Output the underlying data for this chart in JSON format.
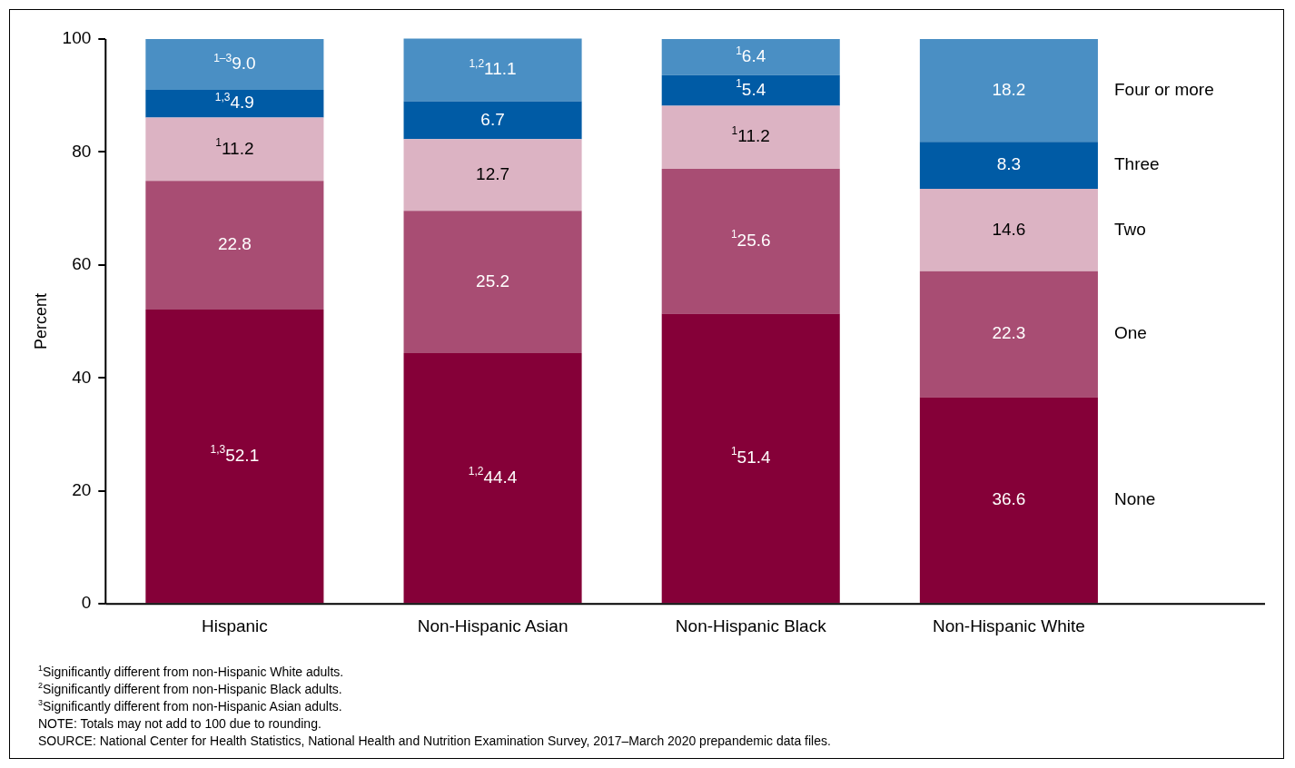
{
  "chart_data": {
    "type": "bar",
    "stacked": true,
    "ylabel": "Percent",
    "categories": [
      "Hispanic",
      "Non-Hispanic Asian",
      "Non-Hispanic Black",
      "Non-Hispanic White"
    ],
    "ylim": [
      0,
      100
    ],
    "yticks": [
      0,
      20,
      40,
      60,
      80,
      100
    ],
    "grid": false,
    "series": [
      {
        "name": "None",
        "color": "#850038",
        "values": [
          52.1,
          44.4,
          51.4,
          36.6
        ],
        "value_labels": [
          "$^{1,3}$52.1",
          "$^{1,2}$44.4",
          "$^{1}$51.4",
          "36.6"
        ]
      },
      {
        "name": "One",
        "color": "#a84d73",
        "values": [
          22.8,
          25.2,
          25.6,
          22.3
        ],
        "value_labels": [
          "22.8",
          "25.2",
          "$^{1}$25.6",
          "22.3"
        ]
      },
      {
        "name": "Two",
        "color": "#dcb3c3",
        "values": [
          11.2,
          12.7,
          11.2,
          14.6
        ],
        "value_labels": [
          "$^{1}$11.2",
          "12.7",
          "$^{1}$11.2",
          "14.6"
        ]
      },
      {
        "name": "Three",
        "color": "#005ba5",
        "values": [
          4.9,
          6.7,
          5.4,
          8.3
        ],
        "value_labels": [
          "$^{1,3}$4.9",
          "6.7",
          "$^{1}$5.4",
          "8.3"
        ]
      },
      {
        "name": "Four or more",
        "color": "#4a8fc4",
        "values": [
          9.0,
          11.1,
          6.4,
          18.2
        ],
        "value_labels": [
          "$^{1–3}$9.0",
          "$^{1,2}$11.1",
          "$^{1}$6.4",
          "18.2"
        ]
      }
    ],
    "annotations": [
      "$^{1}$Significantly different from non-Hispanic White adults.",
      "$^{2}$Significantly different from non-Hispanic Black adults.",
      "$^{3}$Significantly different from non-Hispanic Asian adults.",
      "NOTE: Totals may not add to 100 due to rounding.",
      "SOURCE: National Center for Health Statistics, National Health and Nutrition Examination Survey, 2017–March 2020 prepandemic data files."
    ]
  }
}
